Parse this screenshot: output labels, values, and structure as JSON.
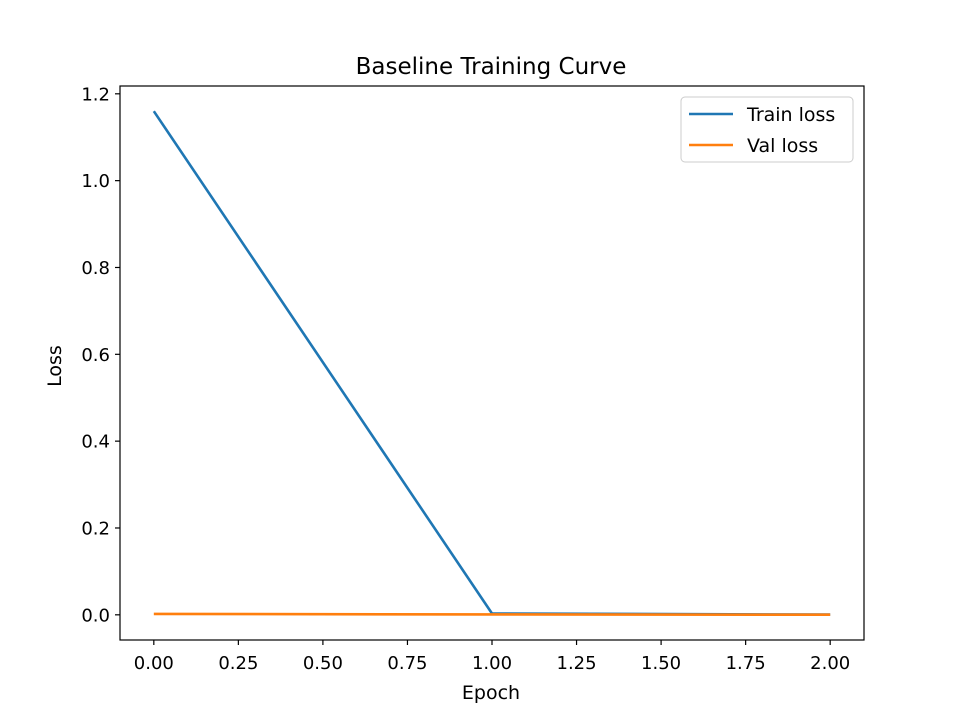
{
  "chart_data": {
    "type": "line",
    "title": "Baseline Training Curve",
    "xlabel": "Epoch",
    "ylabel": "Loss",
    "xlim": [
      -0.1,
      2.1
    ],
    "ylim": [
      -0.058,
      1.218
    ],
    "xticks": [
      0.0,
      0.25,
      0.5,
      0.75,
      1.0,
      1.25,
      1.5,
      1.75,
      2.0
    ],
    "xtick_labels": [
      "0.00",
      "0.25",
      "0.50",
      "0.75",
      "1.00",
      "1.25",
      "1.50",
      "1.75",
      "2.00"
    ],
    "yticks": [
      0.0,
      0.2,
      0.4,
      0.6,
      0.8,
      1.0,
      1.2
    ],
    "ytick_labels": [
      "0.0",
      "0.2",
      "0.4",
      "0.6",
      "0.8",
      "1.0",
      "1.2"
    ],
    "grid": false,
    "legend_position": "top-right",
    "series": [
      {
        "name": "Train loss",
        "color": "#1f77b4",
        "x": [
          0,
          1,
          2
        ],
        "y": [
          1.16,
          0.003,
          0.0005
        ]
      },
      {
        "name": "Val loss",
        "color": "#ff7f0e",
        "x": [
          0,
          1,
          2
        ],
        "y": [
          0.002,
          0.0008,
          0.0003
        ]
      }
    ]
  }
}
